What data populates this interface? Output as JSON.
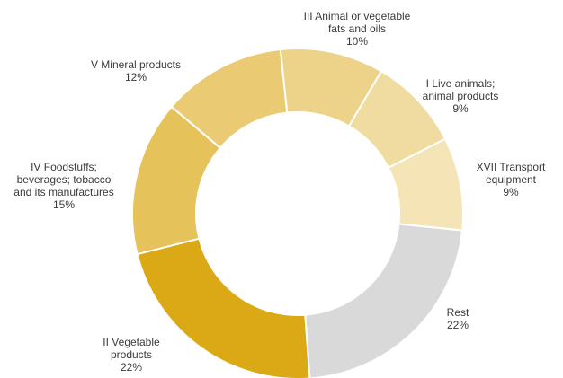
{
  "chart_data": {
    "type": "pie",
    "style": "donut",
    "slices": [
      {
        "lines": [
          "III  Animal or vegetable",
          "fats and oils"
        ],
        "value_label": "10%",
        "value": 10,
        "color": "#EDD38A"
      },
      {
        "lines": [
          "I  Live animals;",
          "animal products"
        ],
        "value_label": "9%",
        "value": 9,
        "color": "#F0DCA0"
      },
      {
        "lines": [
          "XVII Transport",
          "equipment"
        ],
        "value_label": "9%",
        "value": 9,
        "color": "#F4E4B6"
      },
      {
        "lines": [
          "Rest"
        ],
        "value_label": "22%",
        "value": 22,
        "color": "#D9D9D9"
      },
      {
        "lines": [
          "II  Vegetable",
          "products"
        ],
        "value_label": "22%",
        "value": 22,
        "color": "#DBA916"
      },
      {
        "lines": [
          "IV  Foodstuffs;",
          "beverages; tobacco",
          "and its manufactures"
        ],
        "value_label": "15%",
        "value": 15,
        "color": "#E6C25A"
      },
      {
        "lines": [
          "V  Mineral products"
        ],
        "value_label": "12%",
        "value": 12,
        "color": "#EACB73"
      }
    ]
  }
}
